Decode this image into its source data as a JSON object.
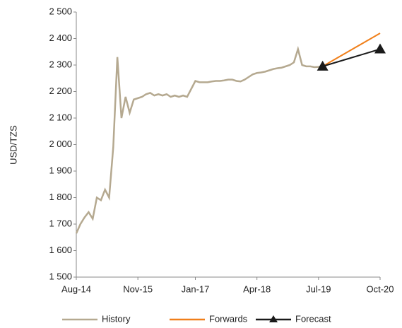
{
  "chart_data": {
    "type": "line",
    "y_label": "USD/TZS",
    "xlim": [
      "Aug-14",
      "Oct-20"
    ],
    "xticks": [
      "Aug-14",
      "Nov-15",
      "Jan-17",
      "Apr-18",
      "Jul-19",
      "Oct-20"
    ],
    "ylim": [
      1500,
      2500
    ],
    "yticks": [
      {
        "value": 1500,
        "label": "1 500"
      },
      {
        "value": 1600,
        "label": "1 600"
      },
      {
        "value": 1700,
        "label": "1 700"
      },
      {
        "value": 1800,
        "label": "1 800"
      },
      {
        "value": 1900,
        "label": "1 900"
      },
      {
        "value": 2000,
        "label": "2 000"
      },
      {
        "value": 2100,
        "label": "2 100"
      },
      {
        "value": 2200,
        "label": "2 200"
      },
      {
        "value": 2300,
        "label": "2 300"
      },
      {
        "value": 2400,
        "label": "2 400"
      },
      {
        "value": 2500,
        "label": "2 500"
      }
    ],
    "grid": false,
    "legend": "bottom",
    "series": [
      {
        "name": "History",
        "color": "#b5a990",
        "marker": "none",
        "x": [
          "Aug-14",
          "Sep-14",
          "Oct-14",
          "Nov-14",
          "Dec-14",
          "Jan-15",
          "Feb-15",
          "Mar-15",
          "Apr-15",
          "May-15",
          "Jun-15",
          "Jul-15",
          "Aug-15",
          "Sep-15",
          "Oct-15",
          "Nov-15",
          "Dec-15",
          "Jan-16",
          "Feb-16",
          "Mar-16",
          "Apr-16",
          "May-16",
          "Jun-16",
          "Jul-16",
          "Aug-16",
          "Sep-16",
          "Oct-16",
          "Nov-16",
          "Dec-16",
          "Jan-17",
          "Feb-17",
          "Mar-17",
          "Apr-17",
          "May-17",
          "Jun-17",
          "Jul-17",
          "Aug-17",
          "Sep-17",
          "Oct-17",
          "Nov-17",
          "Dec-17",
          "Jan-18",
          "Feb-18",
          "Mar-18",
          "Apr-18",
          "May-18",
          "Jun-18",
          "Jul-18",
          "Aug-18",
          "Sep-18",
          "Oct-18",
          "Nov-18",
          "Dec-18",
          "Jan-19",
          "Feb-19",
          "Mar-19",
          "Apr-19",
          "May-19",
          "Jun-19",
          "Jul-19",
          "Aug-19"
        ],
        "values": [
          1665,
          1700,
          1725,
          1745,
          1720,
          1800,
          1790,
          1830,
          1800,
          1990,
          2330,
          2100,
          2180,
          2120,
          2170,
          2175,
          2180,
          2190,
          2195,
          2185,
          2190,
          2185,
          2190,
          2180,
          2185,
          2180,
          2185,
          2180,
          2210,
          2240,
          2235,
          2235,
          2235,
          2238,
          2240,
          2240,
          2242,
          2245,
          2245,
          2240,
          2238,
          2245,
          2255,
          2265,
          2270,
          2272,
          2275,
          2280,
          2285,
          2288,
          2290,
          2295,
          2300,
          2310,
          2360,
          2300,
          2295,
          2295,
          2292,
          2293,
          2295
        ]
      },
      {
        "name": "Forwards",
        "color": "#f07f1a",
        "marker": "none",
        "x": [
          "Aug-19",
          "Oct-20"
        ],
        "values": [
          2295,
          2420
        ]
      },
      {
        "name": "Forecast",
        "color": "#1a1a1a",
        "marker": "triangle",
        "x": [
          "Aug-19",
          "Oct-20"
        ],
        "values": [
          2295,
          2360
        ]
      }
    ]
  }
}
